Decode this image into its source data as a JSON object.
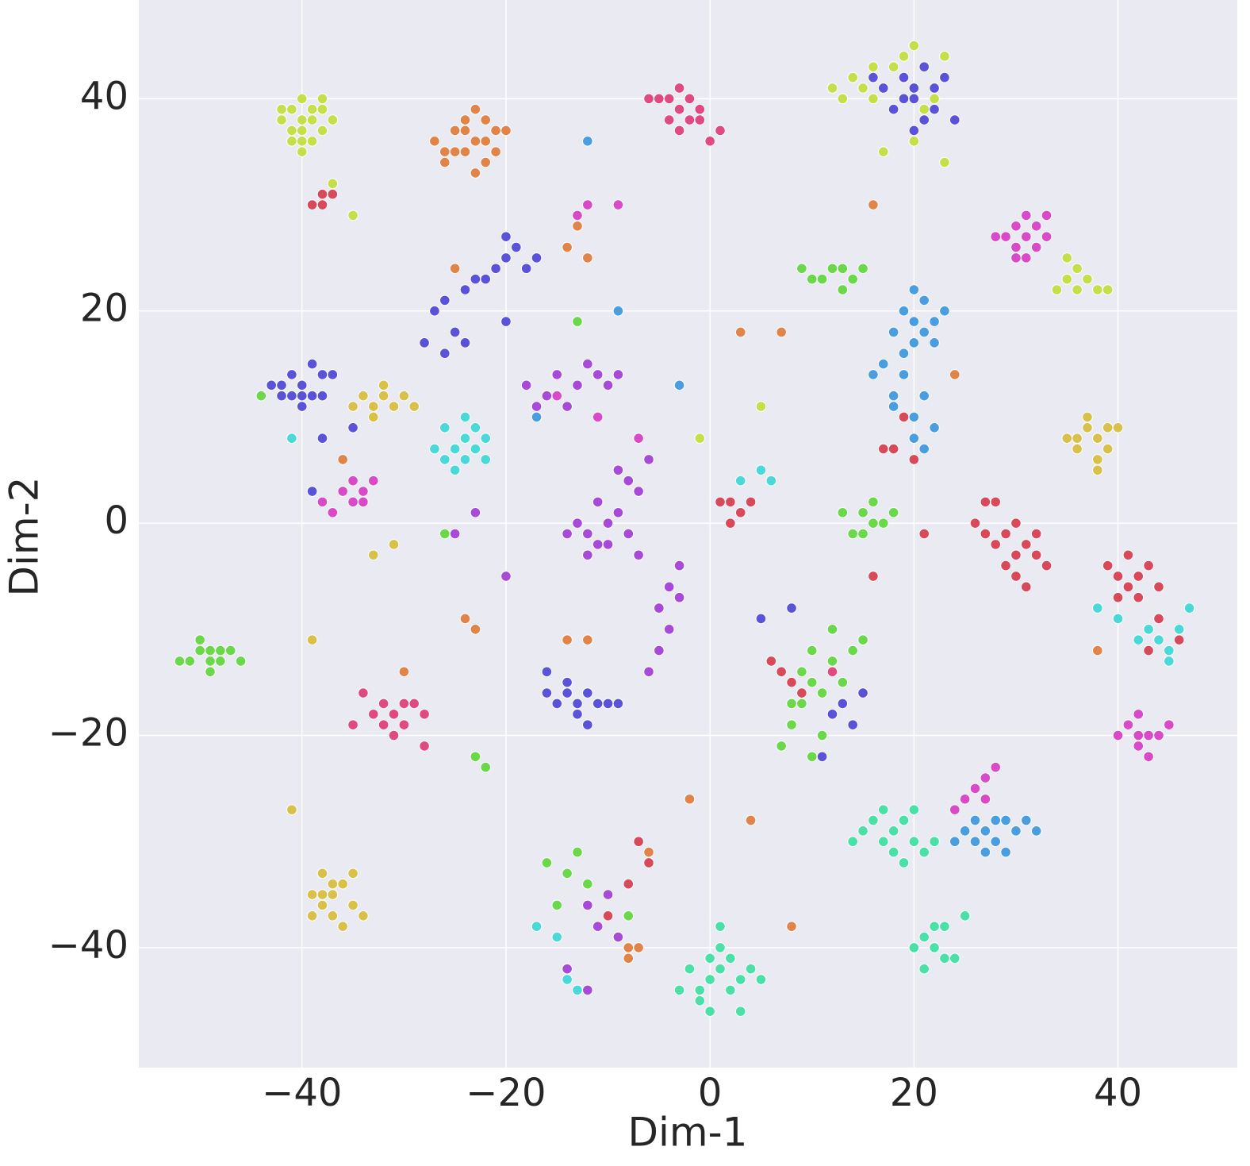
{
  "chart_data": {
    "type": "scatter",
    "x_label": "Dim-1",
    "y_label": "Dim-2",
    "xlim": [
      -56,
      51.7
    ],
    "ylim": [
      -51.3,
      49.3
    ],
    "xticks": [
      {
        "value": -40,
        "label": "−40"
      },
      {
        "value": -20,
        "label": "−20"
      },
      0,
      20,
      40
    ],
    "yticks": [
      {
        "value": -40,
        "label": "−40"
      },
      {
        "value": -20,
        "label": "−20"
      },
      0,
      20,
      40
    ],
    "grid": true,
    "background": "#eaeaf2",
    "series": [
      {
        "color": "#c5df4a",
        "x": [
          -41,
          -40,
          -39,
          -40,
          -42,
          -38,
          -39,
          -41,
          -40,
          -38,
          -42,
          -39,
          -41,
          -40,
          -37,
          -38,
          -40,
          14,
          16,
          15,
          13,
          17,
          18,
          20,
          22,
          21,
          16,
          19,
          12,
          23,
          20,
          17,
          23,
          35,
          36,
          37,
          38,
          39,
          34,
          36,
          35,
          -37,
          -35,
          -1,
          5
        ],
        "y": [
          39,
          40,
          39,
          37,
          38,
          37,
          36,
          37,
          38,
          39,
          39,
          38,
          36,
          36,
          38,
          40,
          35,
          42,
          43,
          41,
          40,
          41,
          43,
          45,
          40,
          39,
          40,
          44,
          41,
          44,
          36,
          35,
          34,
          23,
          22,
          23,
          22,
          22,
          22,
          24,
          25,
          32,
          29,
          8,
          11
        ]
      },
      {
        "color": "#e0844a",
        "x": [
          -23,
          -24,
          -22,
          -25,
          -21,
          -23,
          -26,
          -22,
          -24,
          -20,
          -27,
          -22,
          -25,
          -23,
          -21,
          -26,
          -24,
          -13,
          -14,
          -12,
          -25,
          -23,
          -24,
          -14,
          -12,
          -8,
          -7,
          -9,
          -8,
          -6,
          -2,
          4,
          8,
          -36,
          -30,
          3,
          7,
          16,
          24,
          38
        ],
        "y": [
          36,
          37,
          38,
          35,
          35,
          39,
          34,
          36,
          35,
          37,
          36,
          34,
          37,
          33,
          37,
          35,
          38,
          28,
          26,
          25,
          24,
          -10,
          -9,
          -11,
          -11,
          -40,
          -40,
          -39,
          -41,
          -31,
          -26,
          -28,
          -38,
          6,
          -14,
          18,
          18,
          30,
          14,
          -12
        ]
      },
      {
        "color": "#5a52d8",
        "x": [
          -40,
          -41,
          -39,
          -42,
          -40,
          -38,
          -41,
          -39,
          -43,
          -40,
          -38,
          -42,
          -37,
          -20,
          -19,
          -21,
          -18,
          -20,
          -17,
          -22,
          -23,
          -24,
          -26,
          -27,
          -25,
          -28,
          -26,
          -24,
          -20,
          -13,
          -14,
          -15,
          -12,
          -11,
          -16,
          -13,
          -10,
          -14,
          -12,
          -16,
          -9,
          20,
          19,
          21,
          22,
          20,
          18,
          21,
          23,
          19,
          22,
          17,
          20,
          24,
          16,
          12,
          13,
          15,
          14,
          11,
          8,
          5,
          -38,
          -35,
          -39
        ],
        "y": [
          13,
          14,
          12,
          13,
          11,
          14,
          12,
          15,
          13,
          12,
          12,
          12,
          14,
          25,
          26,
          24,
          24,
          27,
          25,
          23,
          23,
          22,
          21,
          20,
          18,
          17,
          16,
          17,
          19,
          -17,
          -16,
          -17,
          -16,
          -17,
          -16,
          -18,
          -17,
          -15,
          -19,
          -14,
          -17,
          41,
          42,
          43,
          41,
          40,
          39,
          38,
          42,
          40,
          39,
          41,
          37,
          38,
          42,
          -18,
          -17,
          -16,
          -19,
          -22,
          -8,
          -9,
          8,
          9,
          3
        ]
      },
      {
        "color": "#e04a80",
        "x": [
          -3,
          -4,
          -2,
          -3,
          -1,
          -5,
          -2,
          -4,
          -3,
          -1,
          -6,
          0,
          1,
          -31,
          -32,
          -30,
          -33,
          -29,
          -32,
          -30,
          -34,
          -28,
          -31,
          -35,
          12,
          -28
        ],
        "y": [
          39,
          40,
          38,
          41,
          39,
          40,
          40,
          38,
          37,
          38,
          40,
          36,
          37,
          -18,
          -17,
          -19,
          -18,
          -17,
          -19,
          -17,
          -16,
          -18,
          -20,
          -19,
          -14,
          -21
        ]
      },
      {
        "color": "#d84ac8",
        "x": [
          31,
          32,
          30,
          29,
          33,
          31,
          30,
          32,
          28,
          33,
          30,
          31,
          42,
          43,
          41,
          42,
          44,
          42,
          45,
          43,
          40,
          -34,
          -35,
          -33,
          -36,
          -34,
          -35,
          -38,
          -37,
          27,
          28,
          26,
          25,
          27,
          24,
          -12,
          -9,
          -13,
          -15,
          -11,
          -4,
          -7
        ],
        "y": [
          27,
          26,
          28,
          27,
          27,
          25,
          26,
          28,
          27,
          29,
          25,
          29,
          -20,
          -20,
          -19,
          -21,
          -20,
          -18,
          -19,
          -22,
          -20,
          3,
          2,
          4,
          3,
          2,
          4,
          2,
          1,
          -24,
          -23,
          -25,
          -26,
          -26,
          -27,
          30,
          30,
          29,
          12,
          10,
          -6,
          8
        ]
      },
      {
        "color": "#4ad8d8",
        "x": [
          -24,
          -25,
          -23,
          -26,
          -24,
          -22,
          -25,
          -23,
          -27,
          -22,
          -24,
          -26,
          44,
          45,
          43,
          46,
          45,
          42,
          47,
          40,
          38,
          3,
          5,
          6,
          -15,
          -17,
          -13,
          -14,
          -41
        ],
        "y": [
          8,
          7,
          7,
          9,
          6,
          8,
          5,
          9,
          7,
          6,
          10,
          6,
          -11,
          -12,
          -10,
          -10,
          -13,
          -11,
          -8,
          -9,
          -8,
          4,
          5,
          4,
          -39,
          -38,
          -44,
          -43,
          8
        ]
      },
      {
        "color": "#4a9ee0",
        "x": [
          20,
          21,
          19,
          22,
          20,
          18,
          21,
          23,
          19,
          20,
          22,
          17,
          19,
          21,
          18,
          20,
          22,
          20,
          21,
          16,
          18,
          27,
          28,
          26,
          29,
          30,
          27,
          25,
          29,
          31,
          26,
          24,
          32,
          28,
          -12,
          -9,
          -17,
          -3
        ],
        "y": [
          19,
          18,
          20,
          19,
          17,
          18,
          21,
          20,
          16,
          22,
          17,
          15,
          14,
          12,
          12,
          10,
          9,
          8,
          7,
          14,
          11,
          -29,
          -30,
          -30,
          -28,
          -29,
          -31,
          -29,
          -31,
          -28,
          -28,
          -30,
          -29,
          -28,
          36,
          20,
          10,
          13
        ]
      },
      {
        "color": "#4ae0a8",
        "x": [
          0,
          1,
          -1,
          2,
          0,
          1,
          -2,
          3,
          -1,
          2,
          0,
          4,
          -3,
          1,
          3,
          5,
          20,
          18,
          19,
          21,
          17,
          16,
          19,
          22,
          15,
          18,
          20,
          14,
          17,
          22,
          21,
          23,
          20,
          22,
          24,
          21,
          25,
          23
        ],
        "y": [
          -43,
          -42,
          -44,
          -44,
          -41,
          -40,
          -42,
          -43,
          -45,
          -41,
          -46,
          -42,
          -44,
          -38,
          -46,
          -43,
          -30,
          -29,
          -28,
          -31,
          -30,
          -28,
          -32,
          -30,
          -29,
          -31,
          -27,
          -30,
          -27,
          -40,
          -39,
          -41,
          -40,
          -38,
          -41,
          -42,
          -37,
          -38
        ]
      },
      {
        "color": "#6ad84a",
        "x": [
          -49,
          -50,
          -48,
          -51,
          -49,
          -47,
          -50,
          -48,
          -46,
          -52,
          -49,
          10,
          11,
          12,
          9,
          13,
          10,
          8,
          11,
          7,
          9,
          14,
          15,
          12,
          8,
          10,
          16,
          15,
          17,
          14,
          16,
          18,
          13,
          15,
          12,
          11,
          13,
          10,
          14,
          9,
          15,
          13,
          -22,
          -23,
          -16,
          -14,
          -12,
          -15,
          -13,
          -8,
          -44,
          -26,
          -13
        ],
        "y": [
          -13,
          -12,
          -13,
          -13,
          -14,
          -12,
          -11,
          -12,
          -13,
          -13,
          -12,
          -15,
          -16,
          -13,
          -17,
          -15,
          -12,
          -19,
          -20,
          -21,
          -14,
          -12,
          -11,
          -10,
          -17,
          -22,
          0,
          1,
          0,
          -1,
          2,
          1,
          1,
          -1,
          24,
          23,
          24,
          23,
          23,
          24,
          24,
          22,
          -23,
          -22,
          -32,
          -33,
          -34,
          -36,
          -31,
          -37,
          12,
          -1,
          19
        ]
      },
      {
        "color": "#d8c04a",
        "x": [
          -37,
          -38,
          -36,
          -37,
          -39,
          -35,
          -38,
          -36,
          -37,
          -39,
          -35,
          -38,
          -34,
          -33,
          -34,
          -32,
          -33,
          -31,
          -35,
          -30,
          -29,
          -32,
          38,
          37,
          39,
          36,
          38,
          37,
          39,
          36,
          38,
          40,
          35,
          -39,
          -41,
          -33,
          -31
        ],
        "y": [
          -35,
          -36,
          -34,
          -37,
          -35,
          -36,
          -33,
          -38,
          -34,
          -37,
          -33,
          -35,
          -37,
          11,
          12,
          12,
          10,
          11,
          11,
          12,
          11,
          13,
          8,
          9,
          7,
          8,
          6,
          10,
          9,
          7,
          5,
          9,
          8,
          -11,
          -27,
          -3,
          -2
        ]
      },
      {
        "color": "#d84a5a",
        "x": [
          30,
          31,
          29,
          32,
          30,
          33,
          28,
          31,
          32,
          29,
          27,
          26,
          27,
          28,
          30,
          42,
          41,
          43,
          40,
          42,
          39,
          41,
          44,
          40,
          43,
          44,
          46,
          2,
          3,
          1,
          4,
          2,
          7,
          8,
          6,
          9,
          -38,
          -39,
          -37,
          -38,
          -7,
          -6,
          -8,
          -10,
          19,
          17,
          18,
          20,
          16,
          21
        ],
        "y": [
          -3,
          -2,
          -4,
          -3,
          -5,
          -4,
          -2,
          -6,
          -1,
          -1,
          2,
          0,
          -1,
          2,
          0,
          -5,
          -6,
          -4,
          -5,
          -7,
          -4,
          -3,
          -6,
          -7,
          -12,
          -9,
          -11,
          2,
          1,
          2,
          2,
          0,
          -14,
          -15,
          -13,
          -16,
          31,
          30,
          31,
          30,
          -30,
          -32,
          -34,
          -37,
          10,
          7,
          7,
          6,
          -5,
          -1
        ]
      },
      {
        "color": "#a84ad8",
        "x": [
          -10,
          -12,
          -11,
          -9,
          -13,
          -8,
          -11,
          -14,
          -12,
          -10,
          -5,
          -4,
          -5,
          -6,
          -4,
          -3,
          -7,
          -3,
          -15,
          -13,
          -11,
          -16,
          -14,
          -12,
          -10,
          -17,
          -9,
          -18,
          -8,
          -7,
          -6,
          -9,
          -10,
          -11,
          -9,
          -12,
          -14,
          -12,
          -23,
          -25,
          -20
        ],
        "y": [
          0,
          -1,
          -2,
          1,
          0,
          -1,
          2,
          -1,
          -3,
          -2,
          -8,
          -10,
          -12,
          -14,
          -6,
          -7,
          -3,
          -4,
          14,
          13,
          14,
          12,
          11,
          15,
          13,
          11,
          14,
          13,
          4,
          3,
          6,
          5,
          -35,
          -38,
          -39,
          -36,
          -42,
          -44,
          1,
          -1,
          -5
        ]
      }
    ]
  }
}
